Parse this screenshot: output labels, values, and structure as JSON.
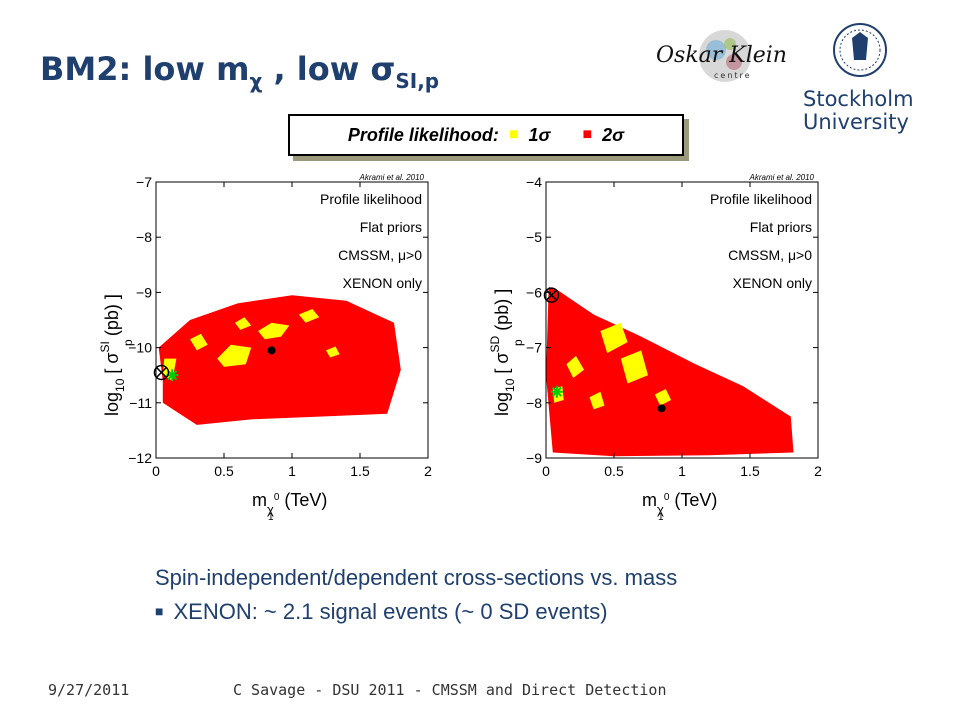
{
  "slide": {
    "title_main": "BM2:  low m",
    "title_chi": "χ",
    "title_mid": " , low ",
    "title_sigma": "σ",
    "title_sub": "SI,p",
    "legend": {
      "label": "Profile likelihood:",
      "one_sigma_marker": "■",
      "one_sigma_label": "1σ",
      "two_sigma_marker": "■",
      "two_sigma_label": "2σ",
      "one_sigma_color": "#ffff00",
      "two_sigma_color": "#ff0000"
    },
    "bullets": [
      "Spin-independent/dependent cross-sections vs. mass",
      "XENON:  ~ 2.1 signal events (~ 0 SD events)"
    ],
    "bullet_marker": "■",
    "footer_date": "9/27/2011",
    "footer_text": "C Savage - DSU 2011 - CMSSM and Direct Detection",
    "logos": {
      "left_logo_text": "Oskar Klein",
      "left_logo_sub": "centre",
      "right_logo_line1": "Stockholm",
      "right_logo_line2": "University"
    },
    "colors": {
      "title": "#1f3f6e",
      "one_sigma": "#ffff00",
      "two_sigma": "#ff0000",
      "best_fit_marker": "#00cc00"
    }
  },
  "chart_data": [
    {
      "type": "heatmap",
      "credit": "Akrami et al. 2010",
      "annotations": [
        "Profile likelihood",
        "Flat priors",
        "CMSSM, μ>0",
        "XENON only"
      ],
      "xlabel": "m",
      "xlabel_sub": "χ",
      "xlabel_sup": "0",
      "xlabel_subsub": "1",
      "xlabel_unit": "(TeV)",
      "ylabel_pre": "log",
      "ylabel_sub": "10",
      "ylabel_bracket_open": "[",
      "ylabel_sigma": "σ",
      "ylabel_sup": "SI",
      "ylabel_p": "p",
      "ylabel_unit": "(pb)",
      "ylabel_bracket_close": "]",
      "xlim": [
        0,
        2
      ],
      "ylim": [
        -12,
        -7
      ],
      "xticks": [
        0,
        0.5,
        1,
        1.5,
        2
      ],
      "xtick_labels": [
        "0",
        "0.5",
        "1",
        "1.5",
        "2"
      ],
      "yticks": [
        -12,
        -11,
        -10,
        -9,
        -8,
        -7
      ],
      "ytick_labels": [
        "−12",
        "−11",
        "−10",
        "−9",
        "−8",
        "−7"
      ],
      "region_2sigma": [
        [
          0.05,
          -10.6
        ],
        [
          0.02,
          -10.0
        ],
        [
          0.25,
          -9.5
        ],
        [
          0.6,
          -9.2
        ],
        [
          1.0,
          -9.05
        ],
        [
          1.4,
          -9.15
        ],
        [
          1.75,
          -9.55
        ],
        [
          1.8,
          -10.4
        ],
        [
          1.7,
          -11.2
        ],
        [
          1.2,
          -11.25
        ],
        [
          0.7,
          -11.3
        ],
        [
          0.3,
          -11.4
        ],
        [
          0.05,
          -11.0
        ]
      ],
      "region_1sigma": [
        [
          [
            0.05,
            -10.5
          ],
          [
            0.06,
            -10.2
          ],
          [
            0.15,
            -10.2
          ],
          [
            0.12,
            -10.6
          ]
        ],
        [
          [
            0.45,
            -10.2
          ],
          [
            0.55,
            -9.95
          ],
          [
            0.7,
            -10.0
          ],
          [
            0.66,
            -10.3
          ],
          [
            0.5,
            -10.35
          ]
        ],
        [
          [
            0.75,
            -9.7
          ],
          [
            0.85,
            -9.55
          ],
          [
            0.98,
            -9.6
          ],
          [
            0.92,
            -9.8
          ],
          [
            0.8,
            -9.85
          ]
        ],
        [
          [
            0.25,
            -9.85
          ],
          [
            0.33,
            -9.75
          ],
          [
            0.38,
            -9.95
          ],
          [
            0.3,
            -10.05
          ]
        ],
        [
          [
            1.05,
            -9.4
          ],
          [
            1.15,
            -9.3
          ],
          [
            1.2,
            -9.45
          ],
          [
            1.1,
            -9.55
          ]
        ],
        [
          [
            0.58,
            -9.55
          ],
          [
            0.65,
            -9.45
          ],
          [
            0.7,
            -9.6
          ],
          [
            0.62,
            -9.68
          ]
        ],
        [
          [
            1.25,
            -10.05
          ],
          [
            1.32,
            -9.98
          ],
          [
            1.35,
            -10.12
          ],
          [
            1.28,
            -10.18
          ]
        ]
      ],
      "best_fit": {
        "x": 0.12,
        "y": -10.5
      },
      "posterior_mean": {
        "x": 0.85,
        "y": -10.05
      },
      "benchmark": {
        "x": 0.04,
        "y": -10.45
      }
    },
    {
      "type": "heatmap",
      "credit": "Akrami et al. 2010",
      "annotations": [
        "Profile likelihood",
        "Flat priors",
        "CMSSM, μ>0",
        "XENON only"
      ],
      "xlabel": "m",
      "xlabel_sub": "χ",
      "xlabel_sup": "0",
      "xlabel_subsub": "1",
      "xlabel_unit": "(TeV)",
      "ylabel_pre": "log",
      "ylabel_sub": "10",
      "ylabel_bracket_open": "[",
      "ylabel_sigma": "σ",
      "ylabel_sup": "SD",
      "ylabel_p": "p",
      "ylabel_unit": "(pb)",
      "ylabel_bracket_close": "]",
      "xlim": [
        0,
        2
      ],
      "ylim": [
        -9,
        -4
      ],
      "xticks": [
        0,
        0.5,
        1,
        1.5,
        2
      ],
      "xtick_labels": [
        "0",
        "0.5",
        "1",
        "1.5",
        "2"
      ],
      "yticks": [
        -9,
        -8,
        -7,
        -6,
        -5,
        -4
      ],
      "ytick_labels": [
        "−9",
        "−8",
        "−7",
        "−6",
        "−5",
        "−4"
      ],
      "region_2sigma": [
        [
          0.02,
          -5.9
        ],
        [
          0.08,
          -5.95
        ],
        [
          0.35,
          -6.4
        ],
        [
          0.7,
          -6.8
        ],
        [
          1.1,
          -7.3
        ],
        [
          1.45,
          -7.7
        ],
        [
          1.8,
          -8.25
        ],
        [
          1.82,
          -8.9
        ],
        [
          1.2,
          -8.95
        ],
        [
          0.5,
          -8.97
        ],
        [
          0.05,
          -8.9
        ],
        [
          0.0,
          -7.5
        ]
      ],
      "region_1sigma": [
        [
          [
            0.4,
            -6.7
          ],
          [
            0.55,
            -6.55
          ],
          [
            0.6,
            -6.9
          ],
          [
            0.45,
            -7.1
          ]
        ],
        [
          [
            0.55,
            -7.2
          ],
          [
            0.7,
            -7.05
          ],
          [
            0.75,
            -7.5
          ],
          [
            0.6,
            -7.65
          ]
        ],
        [
          [
            0.15,
            -7.3
          ],
          [
            0.22,
            -7.15
          ],
          [
            0.28,
            -7.4
          ],
          [
            0.2,
            -7.55
          ]
        ],
        [
          [
            0.05,
            -7.75
          ],
          [
            0.12,
            -7.7
          ],
          [
            0.13,
            -7.95
          ],
          [
            0.06,
            -8.0
          ]
        ],
        [
          [
            0.8,
            -7.85
          ],
          [
            0.88,
            -7.75
          ],
          [
            0.92,
            -7.95
          ],
          [
            0.84,
            -8.05
          ]
        ],
        [
          [
            0.32,
            -7.9
          ],
          [
            0.4,
            -7.8
          ],
          [
            0.43,
            -8.05
          ],
          [
            0.35,
            -8.12
          ]
        ]
      ],
      "best_fit": {
        "x": 0.08,
        "y": -7.8
      },
      "posterior_mean": {
        "x": 0.85,
        "y": -8.1
      },
      "benchmark": {
        "x": 0.04,
        "y": -6.05
      }
    }
  ]
}
